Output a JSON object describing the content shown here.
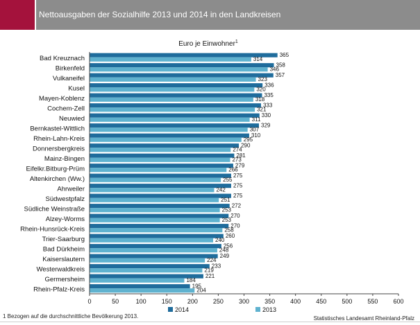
{
  "header": {
    "title": "Nettoausgaben der Sozialhilfe 2013 und 2014 in den Landkreisen"
  },
  "colors": {
    "accent": "#a4123c",
    "header_bg": "#8c8c8c",
    "series_2014": "#1f6c9c",
    "series_2013": "#5fb2cf"
  },
  "chart_data": {
    "type": "bar",
    "orientation": "horizontal",
    "title": "",
    "unit_label": "Euro je Einwohner",
    "unit_superscript": "1",
    "categories": [
      "Bad Kreuznach",
      "Birkenfeld",
      "Vulkaneifel",
      "Kusel",
      "Mayen-Koblenz",
      "Cochem-Zell",
      "Neuwied",
      "Bernkastel-Wittlich",
      "Rhein-Lahn-Kreis",
      "Donnersbergkreis",
      "Mainz-Bingen",
      "Eifelkr.Bitburg-Prüm",
      "Altenkirchen (Ww.)",
      "Ahrweiler",
      "Südwestpfalz",
      "Südliche Weinstraße",
      "Alzey-Worms",
      "Rhein-Hunsrück-Kreis",
      "Trier-Saarburg",
      "Bad Dürkheim",
      "Kaiserslautern",
      "Westerwaldkreis",
      "Germersheim",
      "Rhein-Pfalz-Kreis"
    ],
    "series": [
      {
        "name": "2014",
        "values": [
          365,
          358,
          357,
          336,
          335,
          333,
          330,
          329,
          310,
          290,
          281,
          279,
          275,
          275,
          275,
          272,
          270,
          270,
          260,
          256,
          249,
          233,
          221,
          195
        ]
      },
      {
        "name": "2013",
        "values": [
          314,
          346,
          323,
          320,
          318,
          321,
          311,
          307,
          295,
          274,
          273,
          266,
          255,
          242,
          251,
          253,
          253,
          258,
          240,
          248,
          224,
          219,
          184,
          204
        ]
      }
    ],
    "xlim": [
      0,
      600
    ],
    "x_ticks": [
      "0",
      "50",
      "100",
      "150",
      "200",
      "250",
      "300",
      "350",
      "400",
      "450",
      "500",
      "550",
      "600"
    ],
    "grid": false,
    "legend": "bottom-center"
  },
  "footnote": "1 Bezogen auf die durchschnittliche Bevölkerung 2013.",
  "source": "Statistisches Landesamt Rheinland-Pfalz"
}
